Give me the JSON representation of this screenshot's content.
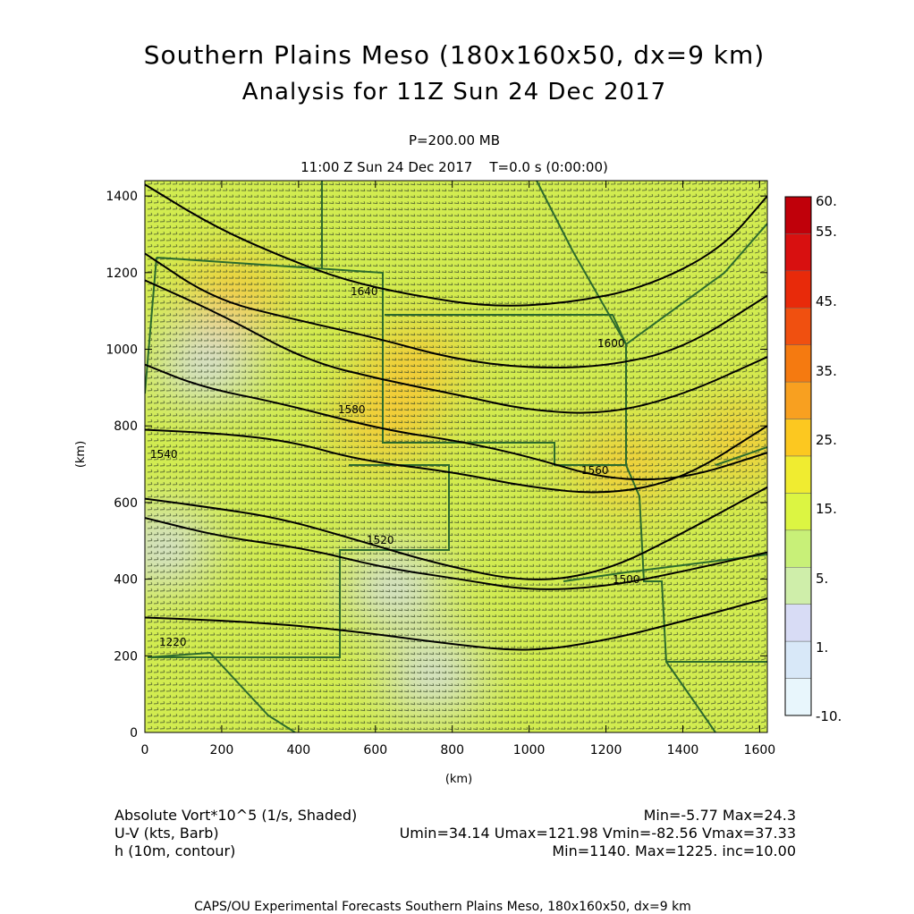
{
  "header": {
    "title": "Southern Plains Meso (180x160x50, dx=9 km)",
    "subtitle": "Analysis for 11Z Sun 24 Dec 2017",
    "level": "P=200.00 MB",
    "time": "11:00 Z Sun 24 Dec 2017    T=0.0 s (0:00:00)"
  },
  "axes": {
    "x_unit": "(km)",
    "y_unit": "(km)",
    "x_ticks": [
      "0",
      "200",
      "400",
      "600",
      "800",
      "1000",
      "1200",
      "1400",
      "1600"
    ],
    "y_ticks": [
      "0",
      "200",
      "400",
      "600",
      "800",
      "1000",
      "1200",
      "1400"
    ]
  },
  "colorbar": {
    "labels": [
      "60.",
      "55.",
      "45.",
      "35.",
      "25.",
      "15.",
      "5.",
      "1.",
      "-10."
    ],
    "colors": [
      "#c0000a",
      "#d81010",
      "#e82a0a",
      "#f05010",
      "#f57a10",
      "#f8a020",
      "#fcc820",
      "#f0ec30",
      "#dcf542",
      "#c8f078",
      "#cfeeaa",
      "#d8dcf5",
      "#d8e8f8",
      "#e8f6fc"
    ]
  },
  "footer": {
    "var1_label": "Absolute Vort*10^5 (1/s, Shaded)",
    "var1_stats": "Min=-5.77 Max=24.3",
    "var2_label": "U-V (kts, Barb)",
    "var2_stats": "Umin=34.14 Umax=121.98 Vmin=-82.56 Vmax=37.33",
    "var3_label": "h (10m, contour)",
    "var3_stats": "Min=1140. Max=1225. inc=10.00",
    "credit": "CAPS/OU Experimental Forecasts  Southern Plains Meso, 180x160x50, dx=9 km"
  },
  "chart_data": {
    "type": "heatmap",
    "title": "Southern Plains Meso (180x160x50, dx=9 km)",
    "subtitle": "Analysis for 11Z Sun 24 Dec 2017",
    "xlabel": "(km)",
    "ylabel": "(km)",
    "xlim": [
      0,
      1620
    ],
    "ylim": [
      0,
      1440
    ],
    "shaded_field": "Absolute Vort*10^5 (1/s)",
    "shaded_min": -5.77,
    "shaded_max": 24.3,
    "colorbar_levels": [
      -10,
      1,
      5,
      15,
      25,
      35,
      45,
      55,
      60
    ],
    "wind_barbs": {
      "umin": 34.14,
      "umax": 121.98,
      "vmin": -82.56,
      "vmax": 37.33
    },
    "contour_field": "h (10m)",
    "contour_min": 1140,
    "contour_max": 1225,
    "contour_inc": 10,
    "contour_labels": [
      "1640",
      "1600",
      "1580",
      "1560",
      "1540",
      "1520",
      "1500",
      "1220"
    ],
    "contours": [
      {
        "points": [
          [
            0,
            1430
          ],
          [
            180,
            1320
          ],
          [
            360,
            1240
          ],
          [
            520,
            1180
          ],
          [
            700,
            1140
          ],
          [
            900,
            1110
          ],
          [
            1100,
            1120
          ],
          [
            1300,
            1160
          ],
          [
            1500,
            1260
          ],
          [
            1620,
            1400
          ]
        ]
      },
      {
        "points": [
          [
            0,
            1250
          ],
          [
            180,
            1130
          ],
          [
            380,
            1080
          ],
          [
            600,
            1030
          ],
          [
            800,
            975
          ],
          [
            1000,
            950
          ],
          [
            1200,
            955
          ],
          [
            1400,
            1000
          ],
          [
            1620,
            1140
          ]
        ]
      },
      {
        "points": [
          [
            0,
            1180
          ],
          [
            200,
            1090
          ],
          [
            420,
            970
          ],
          [
            620,
            920
          ],
          [
            820,
            880
          ],
          [
            1000,
            840
          ],
          [
            1200,
            830
          ],
          [
            1400,
            880
          ],
          [
            1620,
            980
          ]
        ]
      },
      {
        "points": [
          [
            0,
            960
          ],
          [
            150,
            900
          ],
          [
            350,
            860
          ],
          [
            620,
            790
          ],
          [
            820,
            760
          ],
          [
            1000,
            720
          ],
          [
            1200,
            660
          ],
          [
            1400,
            660
          ],
          [
            1620,
            730
          ]
        ]
      },
      {
        "points": [
          [
            0,
            790
          ],
          [
            200,
            780
          ],
          [
            380,
            760
          ],
          [
            560,
            710
          ],
          [
            800,
            680
          ],
          [
            1000,
            640
          ],
          [
            1200,
            620
          ],
          [
            1400,
            660
          ],
          [
            1620,
            800
          ]
        ]
      },
      {
        "points": [
          [
            0,
            610
          ],
          [
            150,
            590
          ],
          [
            350,
            560
          ],
          [
            560,
            500
          ],
          [
            760,
            440
          ],
          [
            1000,
            390
          ],
          [
            1200,
            420
          ],
          [
            1400,
            520
          ],
          [
            1620,
            640
          ]
        ]
      },
      {
        "points": [
          [
            0,
            560
          ],
          [
            200,
            510
          ],
          [
            420,
            480
          ],
          [
            620,
            430
          ],
          [
            820,
            400
          ],
          [
            1000,
            370
          ],
          [
            1200,
            380
          ],
          [
            1400,
            420
          ],
          [
            1620,
            470
          ]
        ]
      },
      {
        "points": [
          [
            0,
            300
          ],
          [
            250,
            290
          ],
          [
            500,
            270
          ],
          [
            800,
            230
          ],
          [
            1000,
            210
          ],
          [
            1200,
            240
          ],
          [
            1400,
            290
          ],
          [
            1620,
            350
          ]
        ]
      }
    ],
    "vort_blobs": [
      {
        "x": 230,
        "y": 1140,
        "v": 23
      },
      {
        "x": 700,
        "y": 960,
        "v": 22
      },
      {
        "x": 1250,
        "y": 690,
        "v": 24
      },
      {
        "x": 1550,
        "y": 760,
        "v": 22
      },
      {
        "x": 620,
        "y": 800,
        "v": 21
      },
      {
        "x": 160,
        "y": 960,
        "v": 2
      },
      {
        "x": 650,
        "y": 380,
        "v": 1
      },
      {
        "x": 750,
        "y": 150,
        "v": 1
      },
      {
        "x": 50,
        "y": 480,
        "v": 3
      }
    ]
  }
}
